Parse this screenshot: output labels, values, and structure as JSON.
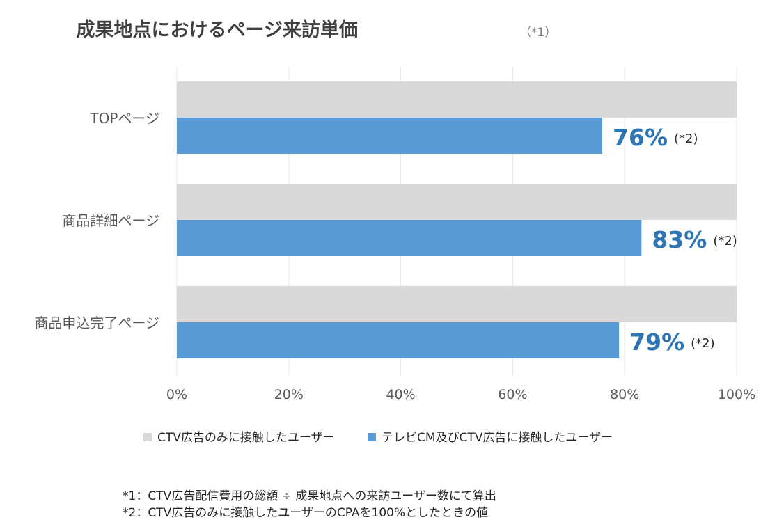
{
  "colors": {
    "series_gray": "#d9d9d9",
    "series_blue": "#5b9bd5",
    "data_label": "#2e75b6",
    "gridline": "#e6e6e6"
  },
  "chart_data": {
    "type": "bar",
    "orientation": "horizontal",
    "title": "成果地点におけるページ来訪単価",
    "title_note": "（*1）",
    "categories": [
      "TOPページ",
      "商品詳細ページ",
      "商品申込完了ページ"
    ],
    "series": [
      {
        "name": "CTV広告のみに接触したユーザー",
        "values": [
          100,
          100,
          100
        ]
      },
      {
        "name": "テレビCM及びCTV広告に接触したユーザー",
        "values": [
          76,
          83,
          79
        ]
      }
    ],
    "data_labels": [
      "76%",
      "83%",
      "79%"
    ],
    "data_label_note": "(*2)",
    "xlim": [
      0,
      100
    ],
    "x_ticks": [
      "0%",
      "20%",
      "40%",
      "60%",
      "80%",
      "100%"
    ],
    "x_tick_values": [
      0,
      20,
      40,
      60,
      80,
      100
    ],
    "grid": true,
    "legend_position": "bottom",
    "xlabel": "",
    "ylabel": ""
  },
  "footnotes": [
    "*1：CTV広告配信費用の総額 ÷ 成果地点への来訪ユーザー数にて算出",
    "*2：CTV広告のみに接触したユーザーのCPAを100%としたときの値"
  ]
}
